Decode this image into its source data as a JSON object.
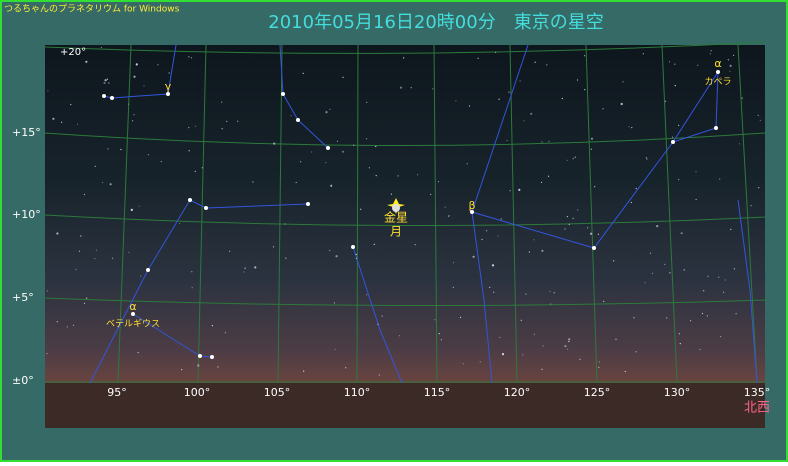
{
  "app_title": "つるちゃんのプラネタリウム for Windows",
  "header": "2010年05月16日20時00分　東京の星空",
  "altitude_labels": [
    "+20°",
    "+15°",
    "+10°",
    "+5°",
    "±0°"
  ],
  "azimuth_labels": [
    "95°",
    "100°",
    "105°",
    "110°",
    "115°",
    "120°",
    "125°",
    "130°",
    "135°"
  ],
  "direction": "北西",
  "objects": [
    {
      "symbol": "γ"
    },
    {
      "symbol": "α",
      "name": "カペラ"
    },
    {
      "symbol": "β"
    },
    {
      "symbol": "α",
      "name": "ベテルギウス"
    },
    {
      "name": "金星"
    },
    {
      "name": "月"
    }
  ]
}
